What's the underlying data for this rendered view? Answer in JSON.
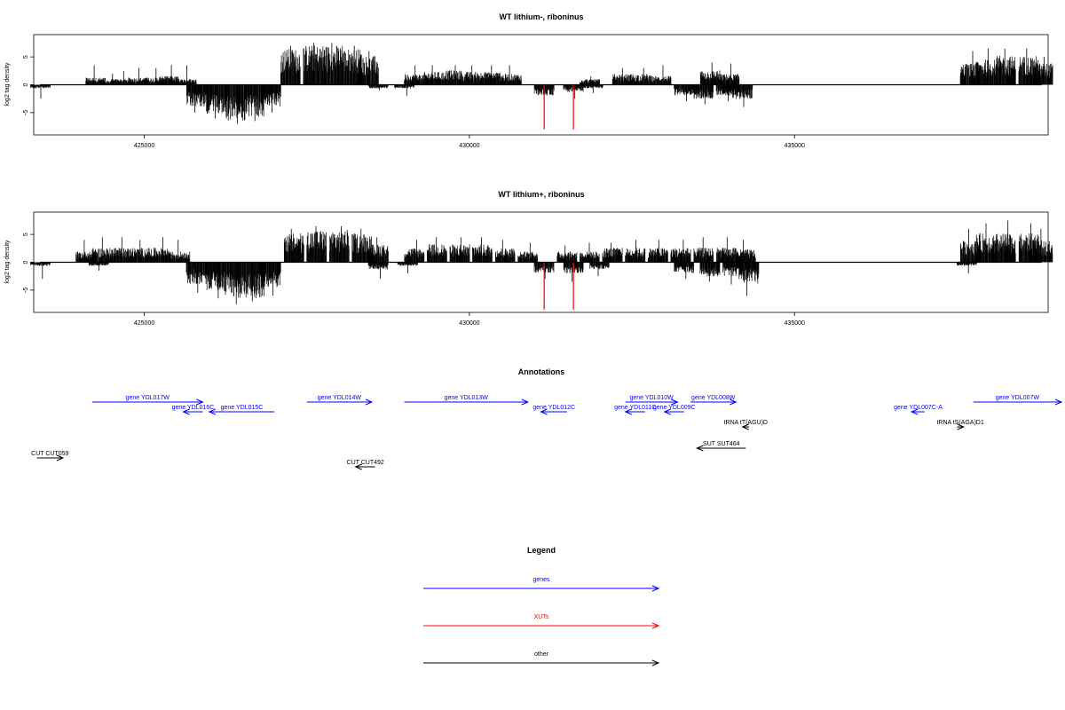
{
  "chart_data": [
    {
      "type": "bar",
      "title": "WT lithium-, riboninus",
      "ylabel": "log2 tag density",
      "xlabel": "",
      "xlim": [
        423300,
        438900
      ],
      "ylim": [
        -9,
        9
      ],
      "xticks": [
        425000,
        430000,
        435000
      ],
      "yticks": [
        5,
        0,
        -5
      ],
      "series": [
        {
          "strand": "plus",
          "color": "#000000",
          "segments": [
            [
              424250,
              3.5,
              1.0
            ],
            [
              424480,
              2.0,
              0.6
            ],
            [
              424650,
              2.5,
              0.8
            ],
            [
              424900,
              3.0,
              1.0
            ],
            [
              425150,
              3.0,
              1.0
            ],
            [
              425380,
              3.5,
              1.2
            ],
            [
              425650,
              3.5,
              0.8
            ],
            [
              427250,
              7.0,
              5.0
            ],
            [
              427600,
              7.5,
              5.5
            ],
            [
              427900,
              7.5,
              5.5
            ],
            [
              428200,
              7.0,
              5.0
            ],
            [
              428450,
              6.0,
              4.0
            ],
            [
              429150,
              3.5,
              1.5
            ],
            [
              429450,
              3.5,
              1.8
            ],
            [
              429750,
              3.5,
              2.0
            ],
            [
              430050,
              3.5,
              1.8
            ],
            [
              430350,
              3.5,
              1.8
            ],
            [
              430650,
              3.5,
              1.5
            ],
            [
              431850,
              1.5,
              0.8
            ],
            [
              432350,
              3.0,
              1.5
            ],
            [
              432650,
              3.0,
              1.5
            ],
            [
              432950,
              3.5,
              1.2
            ],
            [
              433700,
              4.0,
              2.0
            ],
            [
              434000,
              3.8,
              1.5
            ],
            [
              437700,
              6.0,
              3.0
            ],
            [
              437950,
              6.5,
              3.5
            ],
            [
              438250,
              6.5,
              4.0
            ],
            [
              438600,
              6.5,
              4.0
            ],
            [
              438820,
              5.0,
              3.0
            ]
          ]
        },
        {
          "strand": "minus",
          "color": "#000000",
          "segments": [
            [
              423400,
              -2.5,
              -0.5
            ],
            [
              425800,
              -5.0,
              -3.0
            ],
            [
              426100,
              -6.0,
              -4.0
            ],
            [
              426400,
              -7.0,
              -5.0
            ],
            [
              426700,
              -6.5,
              -4.5
            ],
            [
              426950,
              -5.0,
              -3.0
            ],
            [
              428600,
              -1.0,
              -0.5
            ],
            [
              429000,
              -2.0,
              -0.5
            ],
            [
              431150,
              -3.0,
              -1.5
            ],
            [
              431600,
              -2.5,
              -1.0
            ],
            [
              431900,
              -1.5,
              -0.5
            ],
            [
              433300,
              -3.0,
              -1.5
            ],
            [
              433600,
              -3.5,
              -2.0
            ],
            [
              433950,
              -3.0,
              -1.5
            ],
            [
              434200,
              -4.0,
              -2.0
            ]
          ]
        },
        {
          "strand": "minus",
          "color": "#ff0000",
          "peaks": [
            [
              431150,
              -8.0
            ],
            [
              431600,
              -8.0
            ]
          ]
        }
      ]
    },
    {
      "type": "bar",
      "title": "WT lithium+, riboninus",
      "ylabel": "log2 tag density",
      "xlabel": "",
      "xlim": [
        423300,
        438900
      ],
      "ylim": [
        -9,
        9
      ],
      "xticks": [
        425000,
        430000,
        435000
      ],
      "yticks": [
        5,
        0,
        -5
      ],
      "series": [
        {
          "strand": "plus",
          "color": "#000000",
          "segments": [
            [
              424100,
              4.0,
              1.5
            ],
            [
              424350,
              4.5,
              2.0
            ],
            [
              424650,
              4.5,
              2.0
            ],
            [
              424950,
              4.0,
              2.0
            ],
            [
              425250,
              4.5,
              2.0
            ],
            [
              425550,
              4.0,
              1.5
            ],
            [
              427300,
              6.0,
              4.0
            ],
            [
              427650,
              6.5,
              4.5
            ],
            [
              428000,
              6.5,
              4.5
            ],
            [
              428350,
              6.0,
              4.0
            ],
            [
              428600,
              4.5,
              2.5
            ],
            [
              429150,
              4.0,
              2.0
            ],
            [
              429500,
              4.5,
              2.5
            ],
            [
              429850,
              4.5,
              2.5
            ],
            [
              430200,
              4.5,
              2.5
            ],
            [
              430550,
              4.0,
              2.0
            ],
            [
              430900,
              3.5,
              1.5
            ],
            [
              431500,
              3.0,
              1.5
            ],
            [
              431850,
              3.5,
              1.5
            ],
            [
              432200,
              3.5,
              2.0
            ],
            [
              432550,
              4.0,
              2.0
            ],
            [
              432900,
              4.0,
              2.0
            ],
            [
              433250,
              4.0,
              2.0
            ],
            [
              433600,
              4.5,
              2.0
            ],
            [
              433950,
              4.5,
              2.0
            ],
            [
              434250,
              4.0,
              1.8
            ],
            [
              437700,
              6.0,
              3.0
            ],
            [
              437950,
              7.0,
              4.0
            ],
            [
              438250,
              7.5,
              4.0
            ],
            [
              438600,
              7.0,
              4.0
            ],
            [
              438820,
              6.0,
              3.0
            ]
          ]
        },
        {
          "strand": "minus",
          "color": "#000000",
          "segments": [
            [
              423400,
              -3.0,
              -0.5
            ],
            [
              424300,
              -1.5,
              -0.5
            ],
            [
              425800,
              -5.5,
              -3.0
            ],
            [
              426100,
              -6.5,
              -4.0
            ],
            [
              426400,
              -7.5,
              -5.0
            ],
            [
              426700,
              -7.0,
              -5.0
            ],
            [
              426950,
              -6.0,
              -3.5
            ],
            [
              428600,
              -3.0,
              -1.0
            ],
            [
              429050,
              -2.0,
              -0.5
            ],
            [
              431150,
              -3.0,
              -1.5
            ],
            [
              431600,
              -3.5,
              -1.5
            ],
            [
              432000,
              -2.5,
              -1.0
            ],
            [
              433300,
              -3.0,
              -1.5
            ],
            [
              433700,
              -3.5,
              -2.0
            ],
            [
              434050,
              -4.0,
              -2.0
            ],
            [
              434300,
              -6.0,
              -3.0
            ],
            [
              437650,
              -2.0,
              -0.5
            ]
          ]
        },
        {
          "strand": "minus",
          "color": "#ff0000",
          "peaks": [
            [
              431150,
              -8.5
            ],
            [
              431600,
              -8.5
            ]
          ]
        }
      ]
    }
  ],
  "annotations": {
    "title": "Annotations",
    "features": [
      {
        "label": "gene YDL017W",
        "start": 424200,
        "end": 425900,
        "dir": "right",
        "row": 0,
        "type": "gene"
      },
      {
        "label": "gene YDL016C",
        "start": 425600,
        "end": 425900,
        "dir": "left",
        "row": 1,
        "type": "gene"
      },
      {
        "label": "gene YDL015C",
        "start": 426000,
        "end": 427000,
        "dir": "left",
        "row": 1,
        "type": "gene"
      },
      {
        "label": "gene YDL014W",
        "start": 427500,
        "end": 428500,
        "dir": "right",
        "row": 0,
        "type": "gene"
      },
      {
        "label": "gene YDL013W",
        "start": 429000,
        "end": 430900,
        "dir": "right",
        "row": 0,
        "type": "gene"
      },
      {
        "label": "gene YDL012C",
        "start": 431100,
        "end": 431500,
        "dir": "left",
        "row": 1,
        "type": "gene"
      },
      {
        "label": "gene YDL010W",
        "start": 432400,
        "end": 433200,
        "dir": "right",
        "row": 0,
        "type": "gene"
      },
      {
        "label": "gene YDL011C",
        "start": 432400,
        "end": 432700,
        "dir": "left",
        "row": 1,
        "type": "gene"
      },
      {
        "label": "gene YDL009C",
        "start": 433000,
        "end": 433300,
        "dir": "left",
        "row": 1,
        "type": "gene"
      },
      {
        "label": "gene YDL008W",
        "start": 433400,
        "end": 434100,
        "dir": "right",
        "row": 0,
        "type": "gene"
      },
      {
        "label": "gene YDL007C-A",
        "start": 436800,
        "end": 437000,
        "dir": "left",
        "row": 1,
        "type": "gene"
      },
      {
        "label": "gene YDL007W",
        "start": 437750,
        "end": 439400,
        "dir": "right",
        "row": 0,
        "type": "gene"
      },
      {
        "label": "tRNA tT(AGU)D",
        "start": 434200,
        "end": 434300,
        "dir": "left",
        "row": 2,
        "type": "other"
      },
      {
        "label": "tRNA tS(AGA)D1",
        "start": 437500,
        "end": 437600,
        "dir": "right",
        "row": 2,
        "type": "other"
      },
      {
        "label": "SUT SUT464",
        "start": 433500,
        "end": 434250,
        "dir": "left",
        "row": 3,
        "type": "other"
      },
      {
        "label": "CUT CUT059",
        "start": 423350,
        "end": 423750,
        "dir": "right",
        "row": 4,
        "type": "other"
      },
      {
        "label": "CUT CUT492",
        "start": 428250,
        "end": 428550,
        "dir": "left",
        "row": 5,
        "type": "other"
      }
    ]
  },
  "legend": {
    "title": "Legend",
    "items": [
      {
        "label": "genes",
        "color": "#0000ff"
      },
      {
        "label": "XUTs",
        "color": "#ff0000"
      },
      {
        "label": "other",
        "color": "#000000"
      }
    ]
  }
}
